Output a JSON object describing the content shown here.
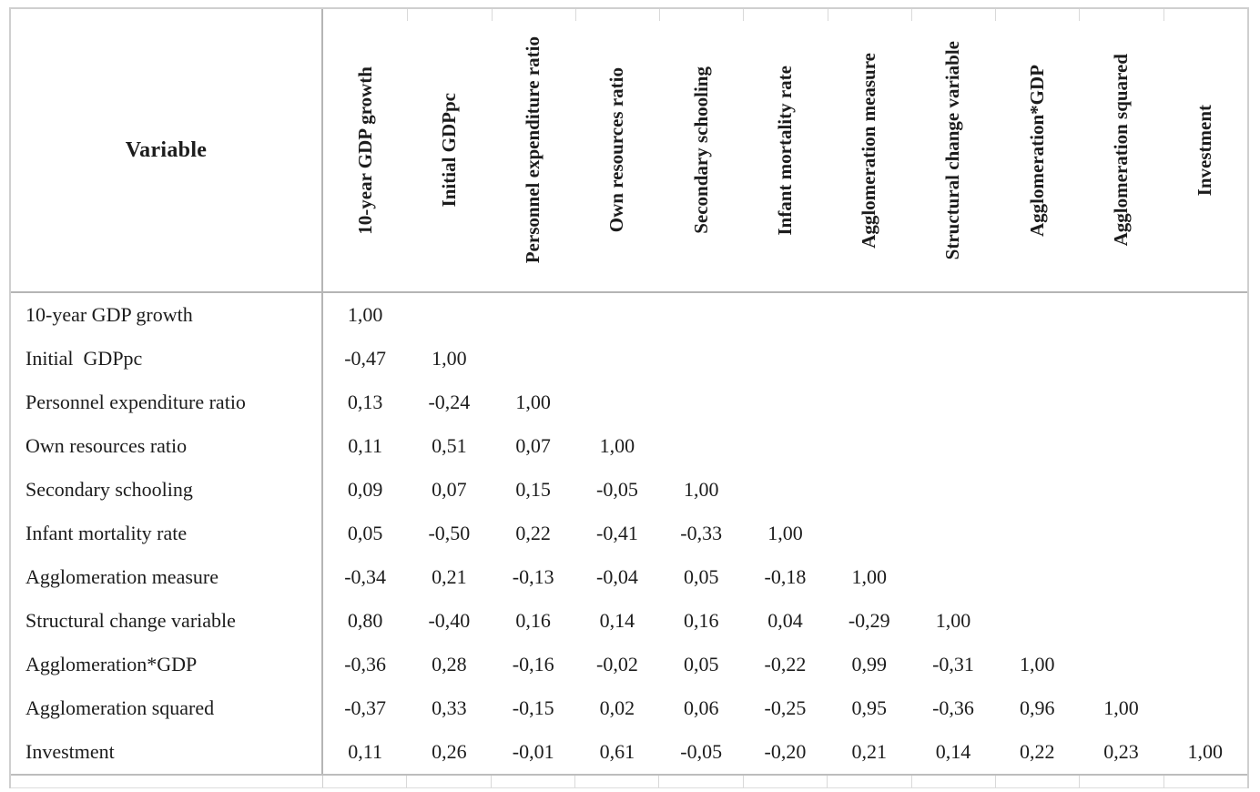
{
  "table": {
    "corner_header": "Variable",
    "column_headers": [
      "10-year GDP growth",
      "Initial GDPpc",
      "Personnel expenditure ratio",
      "Own resources ratio",
      "Secondary schooling",
      "Infant mortality rate",
      "Agglomeration measure",
      "Structural change variable",
      "Agglomeration*GDP",
      "Agglomeration squared",
      "Investment"
    ],
    "rows": [
      {
        "label": "10-year GDP growth",
        "values": [
          "1,00"
        ]
      },
      {
        "label": "Initial  GDPpc",
        "values": [
          "-0,47",
          "1,00"
        ]
      },
      {
        "label": "Personnel expenditure ratio",
        "values": [
          "0,13",
          "-0,24",
          "1,00"
        ]
      },
      {
        "label": "Own resources ratio",
        "values": [
          "0,11",
          "0,51",
          "0,07",
          "1,00"
        ]
      },
      {
        "label": "Secondary schooling",
        "values": [
          "0,09",
          "0,07",
          "0,15",
          "-0,05",
          "1,00"
        ]
      },
      {
        "label": "Infant mortality rate",
        "values": [
          "0,05",
          "-0,50",
          "0,22",
          "-0,41",
          "-0,33",
          "1,00"
        ]
      },
      {
        "label": "Agglomeration measure",
        "values": [
          "-0,34",
          "0,21",
          "-0,13",
          "-0,04",
          "0,05",
          "-0,18",
          "1,00"
        ]
      },
      {
        "label": "Structural change variable",
        "values": [
          "0,80",
          "-0,40",
          "0,16",
          "0,14",
          "0,16",
          "0,04",
          "-0,29",
          "1,00"
        ]
      },
      {
        "label": "Agglomeration*GDP",
        "values": [
          "-0,36",
          "0,28",
          "-0,16",
          "-0,02",
          "0,05",
          "-0,22",
          "0,99",
          "-0,31",
          "1,00"
        ]
      },
      {
        "label": "Agglomeration squared",
        "values": [
          "-0,37",
          "0,33",
          "-0,15",
          "0,02",
          "0,06",
          "-0,25",
          "0,95",
          "-0,36",
          "0,96",
          "1,00"
        ]
      },
      {
        "label": "Investment",
        "values": [
          "0,11",
          "0,26",
          "-0,01",
          "0,61",
          "-0,05",
          "-0,20",
          "0,21",
          "0,14",
          "0,22",
          "0,23",
          "1,00"
        ]
      }
    ],
    "num_columns": 11,
    "colors": {
      "text": "#1c1c1c",
      "outer_border": "#cfcfcf",
      "strong_rule": "#b5b5b5",
      "faint_rule": "#d9d9d9"
    }
  }
}
